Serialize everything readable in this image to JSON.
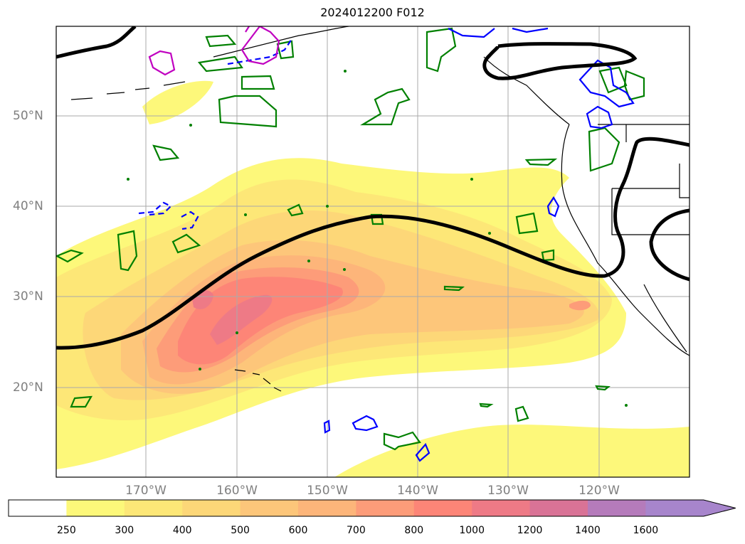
{
  "title": "2024012200 F012",
  "lat_labels": [
    "50°N",
    "40°N",
    "30°N",
    "20°N"
  ],
  "lon_labels": [
    "170°W",
    "160°W",
    "150°W",
    "140°W",
    "130°W",
    "120°W"
  ],
  "colorbar": {
    "ticks": [
      "250",
      "300",
      "400",
      "500",
      "600",
      "700",
      "800",
      "1000",
      "1200",
      "1400",
      "1600"
    ],
    "colors": [
      "#ffffff",
      "#fdf87a",
      "#fde777",
      "#fdd778",
      "#fdc67a",
      "#fdb57a",
      "#fd9c79",
      "#fd8577",
      "#ee7a86",
      "#d97396",
      "#b57bbb",
      "#a785cc"
    ],
    "extend": "max"
  },
  "contour_colors": {
    "height_line": "#000000",
    "green": "#008000",
    "blue": "#0000ff",
    "magenta": "#c000c0"
  }
}
